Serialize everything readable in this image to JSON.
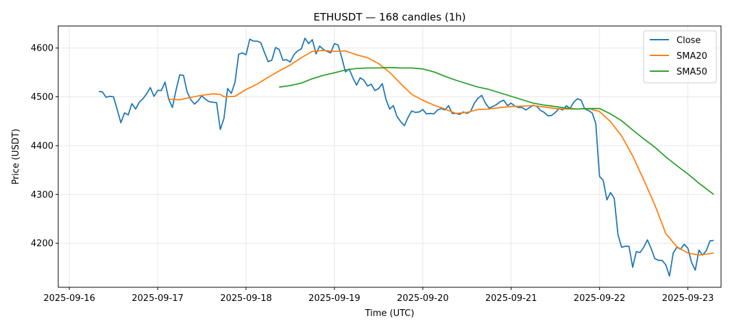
{
  "chart_data": {
    "type": "line",
    "title": "ETHUSDT — 168 candles (1h)",
    "xlabel": "Time (UTC)",
    "ylabel": "Price (USDT)",
    "x_range": [
      "2025-09-15T21:00",
      "2025-09-23T09:00"
    ],
    "ylim": [
      4110,
      4645
    ],
    "grid": true,
    "legend_position": "top-right",
    "x_ticks": [
      "2025-09-16",
      "2025-09-17",
      "2025-09-18",
      "2025-09-19",
      "2025-09-20",
      "2025-09-21",
      "2025-09-22",
      "2025-09-23"
    ],
    "y_ticks": [
      4200,
      4300,
      4400,
      4500,
      4600
    ],
    "series": [
      {
        "name": "Close",
        "color": "#1f77b4",
        "x": [
          "2025-09-16T08:00",
          "2025-09-16T09:00",
          "2025-09-16T10:00",
          "2025-09-16T11:00",
          "2025-09-16T12:00",
          "2025-09-16T13:00",
          "2025-09-16T14:00",
          "2025-09-16T15:00",
          "2025-09-16T16:00",
          "2025-09-16T17:00",
          "2025-09-16T18:00",
          "2025-09-16T19:00",
          "2025-09-16T20:00",
          "2025-09-16T21:00",
          "2025-09-16T22:00",
          "2025-09-16T23:00",
          "2025-09-17T00:00",
          "2025-09-17T01:00",
          "2025-09-17T02:00",
          "2025-09-17T03:00",
          "2025-09-17T04:00",
          "2025-09-17T05:00",
          "2025-09-17T06:00",
          "2025-09-17T07:00",
          "2025-09-17T08:00",
          "2025-09-17T09:00",
          "2025-09-17T10:00",
          "2025-09-17T11:00",
          "2025-09-17T12:00",
          "2025-09-17T13:00",
          "2025-09-17T14:00",
          "2025-09-17T15:00",
          "2025-09-17T16:00",
          "2025-09-17T17:00",
          "2025-09-17T18:00",
          "2025-09-17T19:00",
          "2025-09-17T20:00",
          "2025-09-17T21:00",
          "2025-09-17T22:00",
          "2025-09-17T23:00",
          "2025-09-18T00:00",
          "2025-09-18T01:00",
          "2025-09-18T02:00",
          "2025-09-18T03:00",
          "2025-09-18T04:00",
          "2025-09-18T05:00",
          "2025-09-18T06:00",
          "2025-09-18T07:00",
          "2025-09-18T08:00",
          "2025-09-18T09:00",
          "2025-09-18T10:00",
          "2025-09-18T11:00",
          "2025-09-18T12:00",
          "2025-09-18T13:00",
          "2025-09-18T14:00",
          "2025-09-18T15:00",
          "2025-09-18T16:00",
          "2025-09-18T17:00",
          "2025-09-18T18:00",
          "2025-09-18T19:00",
          "2025-09-18T20:00",
          "2025-09-18T21:00",
          "2025-09-18T22:00",
          "2025-09-18T23:00",
          "2025-09-19T00:00",
          "2025-09-19T01:00",
          "2025-09-19T02:00",
          "2025-09-19T03:00",
          "2025-09-19T04:00",
          "2025-09-19T05:00",
          "2025-09-19T06:00",
          "2025-09-19T07:00",
          "2025-09-19T08:00",
          "2025-09-19T09:00",
          "2025-09-19T10:00",
          "2025-09-19T11:00",
          "2025-09-19T12:00",
          "2025-09-19T13:00",
          "2025-09-19T14:00",
          "2025-09-19T15:00",
          "2025-09-19T16:00",
          "2025-09-19T17:00",
          "2025-09-19T18:00",
          "2025-09-19T19:00",
          "2025-09-19T20:00",
          "2025-09-19T21:00",
          "2025-09-19T22:00",
          "2025-09-19T23:00",
          "2025-09-20T00:00",
          "2025-09-20T01:00",
          "2025-09-20T02:00",
          "2025-09-20T03:00",
          "2025-09-20T04:00",
          "2025-09-20T05:00",
          "2025-09-20T06:00",
          "2025-09-20T07:00",
          "2025-09-20T08:00",
          "2025-09-20T09:00",
          "2025-09-20T10:00",
          "2025-09-20T11:00",
          "2025-09-20T12:00",
          "2025-09-20T13:00",
          "2025-09-20T14:00",
          "2025-09-20T15:00",
          "2025-09-20T16:00",
          "2025-09-20T17:00",
          "2025-09-20T18:00",
          "2025-09-20T19:00",
          "2025-09-20T20:00",
          "2025-09-20T21:00",
          "2025-09-20T22:00",
          "2025-09-20T23:00",
          "2025-09-21T00:00",
          "2025-09-21T01:00",
          "2025-09-21T02:00",
          "2025-09-21T03:00",
          "2025-09-21T04:00",
          "2025-09-21T05:00",
          "2025-09-21T06:00",
          "2025-09-21T07:00",
          "2025-09-21T08:00",
          "2025-09-21T09:00",
          "2025-09-21T10:00",
          "2025-09-21T11:00",
          "2025-09-21T12:00",
          "2025-09-21T13:00",
          "2025-09-21T14:00",
          "2025-09-21T15:00",
          "2025-09-21T16:00",
          "2025-09-21T17:00",
          "2025-09-21T18:00",
          "2025-09-21T19:00",
          "2025-09-21T20:00",
          "2025-09-21T21:00",
          "2025-09-21T22:00",
          "2025-09-21T23:00",
          "2025-09-22T00:00",
          "2025-09-22T01:00",
          "2025-09-22T02:00",
          "2025-09-22T03:00",
          "2025-09-22T04:00",
          "2025-09-22T05:00",
          "2025-09-22T06:00",
          "2025-09-22T07:00",
          "2025-09-22T08:00",
          "2025-09-22T09:00",
          "2025-09-22T10:00",
          "2025-09-22T11:00",
          "2025-09-22T12:00",
          "2025-09-22T13:00",
          "2025-09-22T14:00",
          "2025-09-22T15:00",
          "2025-09-22T16:00",
          "2025-09-22T17:00",
          "2025-09-22T18:00",
          "2025-09-22T19:00",
          "2025-09-22T20:00",
          "2025-09-22T21:00",
          "2025-09-22T22:00",
          "2025-09-22T23:00",
          "2025-09-23T00:00",
          "2025-09-23T01:00",
          "2025-09-23T02:00",
          "2025-09-23T03:00",
          "2025-09-23T04:00",
          "2025-09-23T05:00",
          "2025-09-23T06:00",
          "2025-09-23T07:00"
        ],
        "values": [
          4511,
          4510,
          4499,
          4501,
          4500,
          4474,
          4447,
          4467,
          4463,
          4486,
          4475,
          4489,
          4496,
          4506,
          4519,
          4501,
          4513,
          4513,
          4530,
          4495,
          4478,
          4514,
          4545,
          4544,
          4510,
          4494,
          4485,
          4492,
          4502,
          4495,
          4490,
          4489,
          4488,
          4433,
          4456,
          4517,
          4507,
          4530,
          4587,
          4590,
          4586,
          4618,
          4614,
          4614,
          4611,
          4591,
          4572,
          4575,
          4601,
          4597,
          4575,
          4576,
          4571,
          4586,
          4594,
          4598,
          4620,
          4609,
          4617,
          4588,
          4604,
          4597,
          4593,
          4590,
          4609,
          4606,
          4580,
          4551,
          4557,
          4539,
          4524,
          4539,
          4534,
          4522,
          4526,
          4513,
          4517,
          4527,
          4495,
          4475,
          4482,
          4460,
          4449,
          4441,
          4458,
          4471,
          4468,
          4469,
          4474,
          4465,
          4466,
          4465,
          4473,
          4476,
          4473,
          4482,
          4466,
          4466,
          4464,
          4469,
          4466,
          4470,
          4487,
          4497,
          4503,
          4487,
          4477,
          4480,
          4484,
          4490,
          4493,
          4482,
          4487,
          4481,
          4478,
          4478,
          4473,
          4478,
          4483,
          4480,
          4472,
          4468,
          4461,
          4462,
          4468,
          4476,
          4473,
          4482,
          4476,
          4489,
          4496,
          4493,
          4475,
          4472,
          4467,
          4445,
          4337,
          4329,
          4289,
          4304,
          4292,
          4218,
          4192,
          4194,
          4194,
          4151,
          4183,
          4181,
          4192,
          4207,
          4190,
          4169,
          4165,
          4165,
          4156,
          4133,
          4180,
          4192,
          4188,
          4198,
          4190,
          4161,
          4145,
          4186,
          4176,
          4185,
          4205,
          4206
        ]
      },
      {
        "name": "SMA20",
        "color": "#ff7f0e",
        "x": [
          "2025-09-17T03:00",
          "2025-09-17T06:00",
          "2025-09-17T09:00",
          "2025-09-17T12:00",
          "2025-09-17T15:00",
          "2025-09-17T17:00",
          "2025-09-17T18:00",
          "2025-09-17T21:00",
          "2025-09-18T00:00",
          "2025-09-18T03:00",
          "2025-09-18T06:00",
          "2025-09-18T09:00",
          "2025-09-18T12:00",
          "2025-09-18T15:00",
          "2025-09-18T18:00",
          "2025-09-18T21:00",
          "2025-09-19T00:00",
          "2025-09-19T03:00",
          "2025-09-19T06:00",
          "2025-09-19T09:00",
          "2025-09-19T12:00",
          "2025-09-19T15:00",
          "2025-09-19T18:00",
          "2025-09-19T21:00",
          "2025-09-20T00:00",
          "2025-09-20T03:00",
          "2025-09-20T06:00",
          "2025-09-20T09:00",
          "2025-09-20T12:00",
          "2025-09-20T15:00",
          "2025-09-20T18:00",
          "2025-09-20T21:00",
          "2025-09-21T00:00",
          "2025-09-21T03:00",
          "2025-09-21T06:00",
          "2025-09-21T09:00",
          "2025-09-21T12:00",
          "2025-09-21T15:00",
          "2025-09-21T18:00",
          "2025-09-21T21:00",
          "2025-09-22T00:00",
          "2025-09-22T03:00",
          "2025-09-22T06:00",
          "2025-09-22T09:00",
          "2025-09-22T12:00",
          "2025-09-22T15:00",
          "2025-09-22T18:00",
          "2025-09-22T21:00",
          "2025-09-23T00:00",
          "2025-09-23T03:00",
          "2025-09-23T07:00"
        ],
        "values": [
          4495,
          4494,
          4499,
          4503,
          4506,
          4505,
          4500,
          4501,
          4515,
          4526,
          4540,
          4553,
          4565,
          4580,
          4593,
          4595,
          4593,
          4594,
          4586,
          4580,
          4568,
          4550,
          4527,
          4505,
          4493,
          4483,
          4475,
          4466,
          4468,
          4474,
          4475,
          4478,
          4480,
          4481,
          4482,
          4479,
          4476,
          4475,
          4475,
          4476,
          4470,
          4449,
          4420,
          4379,
          4330,
          4279,
          4220,
          4193,
          4180,
          4176,
          4180
        ]
      },
      {
        "name": "SMA50",
        "color": "#2ca02c",
        "x": [
          "2025-09-18T09:00",
          "2025-09-18T12:00",
          "2025-09-18T15:00",
          "2025-09-18T18:00",
          "2025-09-18T21:00",
          "2025-09-19T00:00",
          "2025-09-19T03:00",
          "2025-09-19T06:00",
          "2025-09-19T09:00",
          "2025-09-19T12:00",
          "2025-09-19T15:00",
          "2025-09-19T18:00",
          "2025-09-19T21:00",
          "2025-09-20T00:00",
          "2025-09-20T03:00",
          "2025-09-20T06:00",
          "2025-09-20T09:00",
          "2025-09-20T12:00",
          "2025-09-20T15:00",
          "2025-09-20T18:00",
          "2025-09-20T21:00",
          "2025-09-21T00:00",
          "2025-09-21T03:00",
          "2025-09-21T06:00",
          "2025-09-21T09:00",
          "2025-09-21T12:00",
          "2025-09-21T15:00",
          "2025-09-21T18:00",
          "2025-09-21T21:00",
          "2025-09-22T00:00",
          "2025-09-22T03:00",
          "2025-09-22T06:00",
          "2025-09-22T09:00",
          "2025-09-22T12:00",
          "2025-09-22T15:00",
          "2025-09-22T18:00",
          "2025-09-22T21:00",
          "2025-09-23T00:00",
          "2025-09-23T03:00",
          "2025-09-23T07:00"
        ],
        "values": [
          4520,
          4523,
          4528,
          4537,
          4544,
          4549,
          4555,
          4558,
          4559,
          4559,
          4560,
          4559,
          4559,
          4557,
          4551,
          4542,
          4534,
          4527,
          4520,
          4515,
          4508,
          4501,
          4494,
          4487,
          4483,
          4480,
          4477,
          4475,
          4476,
          4476,
          4465,
          4451,
          4432,
          4414,
          4397,
          4377,
          4359,
          4342,
          4323,
          4300
        ]
      }
    ]
  }
}
